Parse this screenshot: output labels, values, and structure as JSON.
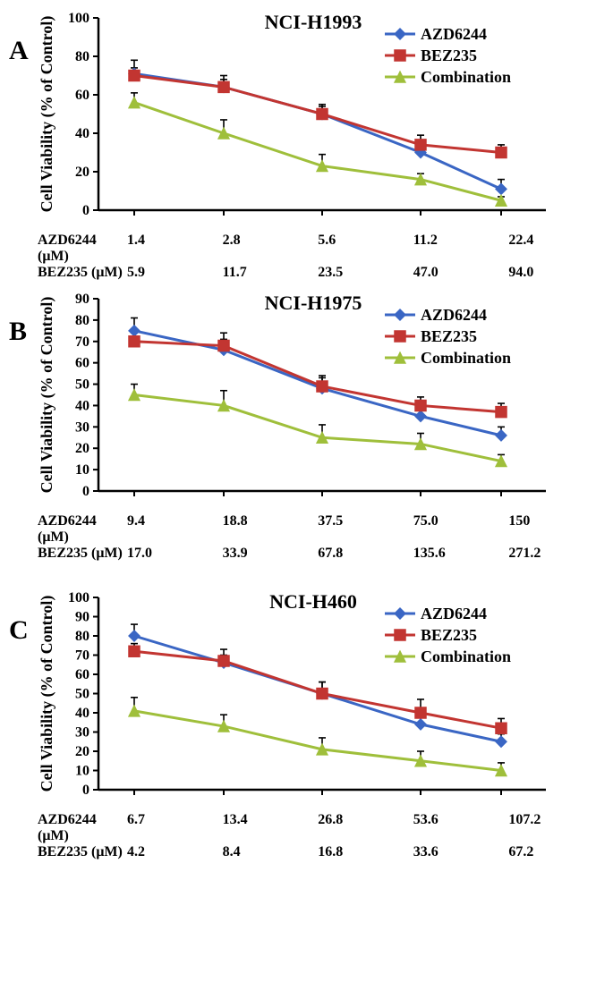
{
  "global": {
    "legend": {
      "series": [
        {
          "key": "azd",
          "label": "AZD6244",
          "color": "#3a66c4",
          "marker": "diamond"
        },
        {
          "key": "bez",
          "label": "BEZ235",
          "color": "#c23531",
          "marker": "square"
        },
        {
          "key": "comb",
          "label": "Combination",
          "color": "#9fbf3b",
          "marker": "triangle"
        }
      ],
      "fontsize": 18
    },
    "y_axis": {
      "label": "Cell Viability (% of Control)",
      "label_fontsize": 18,
      "tick_fontsize": 16,
      "color": "#000000"
    },
    "line_width": 3,
    "marker_size": 10,
    "error_bar_color": "#000000",
    "error_cap_width": 8,
    "background_color": "#ffffff",
    "title_fontsize": 22,
    "panel_letter_fontsize": 30,
    "xrow_fontsize": 16
  },
  "panels": [
    {
      "letter": "A",
      "title": "NCI-H1993",
      "ylim": [
        0,
        100
      ],
      "ytick_step": 20,
      "x_rows": [
        {
          "label": "AZD6244 (μM)",
          "values": [
            "1.4",
            "2.8",
            "5.6",
            "11.2",
            "22.4"
          ]
        },
        {
          "label": "BEZ235   (μM)",
          "values": [
            "5.9",
            "11.7",
            "23.5",
            "47.0",
            "94.0"
          ]
        }
      ],
      "series": {
        "azd": {
          "y": [
            71,
            64,
            50,
            30,
            11
          ],
          "err": [
            7,
            4,
            4,
            4,
            5
          ]
        },
        "bez": {
          "y": [
            70,
            64,
            50,
            34,
            30
          ],
          "err": [
            4,
            6,
            5,
            5,
            4
          ]
        },
        "comb": {
          "y": [
            56,
            40,
            23,
            16,
            5
          ],
          "err": [
            5,
            7,
            6,
            3,
            2
          ]
        }
      }
    },
    {
      "letter": "B",
      "title": "NCI-H1975",
      "ylim": [
        0,
        90
      ],
      "ytick_step": 10,
      "x_rows": [
        {
          "label": "AZD6244 (μM)",
          "values": [
            "9.4",
            "18.8",
            "37.5",
            "75.0",
            "150"
          ]
        },
        {
          "label": "BEZ235   (μM)",
          "values": [
            "17.0",
            "33.9",
            "67.8",
            "135.6",
            "271.2"
          ]
        }
      ],
      "series": {
        "azd": {
          "y": [
            75,
            66,
            48,
            35,
            26
          ],
          "err": [
            6,
            5,
            5,
            4,
            4
          ]
        },
        "bez": {
          "y": [
            70,
            68,
            49,
            40,
            37
          ],
          "err": [
            4,
            6,
            5,
            4,
            4
          ]
        },
        "comb": {
          "y": [
            45,
            40,
            25,
            22,
            14
          ],
          "err": [
            5,
            7,
            6,
            5,
            3
          ]
        }
      }
    },
    {
      "letter": "C",
      "title": "NCI-H460",
      "ylim": [
        0,
        100
      ],
      "ytick_step": 10,
      "x_rows": [
        {
          "label": "AZD6244 (μM)",
          "values": [
            "6.7",
            "13.4",
            "26.8",
            "53.6",
            "107.2"
          ]
        },
        {
          "label": "BEZ235   (μM)",
          "values": [
            "4.2",
            "8.4",
            "16.8",
            "33.6",
            "67.2"
          ]
        }
      ],
      "series": {
        "azd": {
          "y": [
            80,
            66,
            50,
            34,
            25
          ],
          "err": [
            6,
            4,
            6,
            4,
            4
          ]
        },
        "bez": {
          "y": [
            72,
            67,
            50,
            40,
            32
          ],
          "err": [
            4,
            6,
            6,
            7,
            5
          ]
        },
        "comb": {
          "y": [
            41,
            33,
            21,
            15,
            10
          ],
          "err": [
            7,
            6,
            6,
            5,
            4
          ]
        }
      }
    }
  ]
}
